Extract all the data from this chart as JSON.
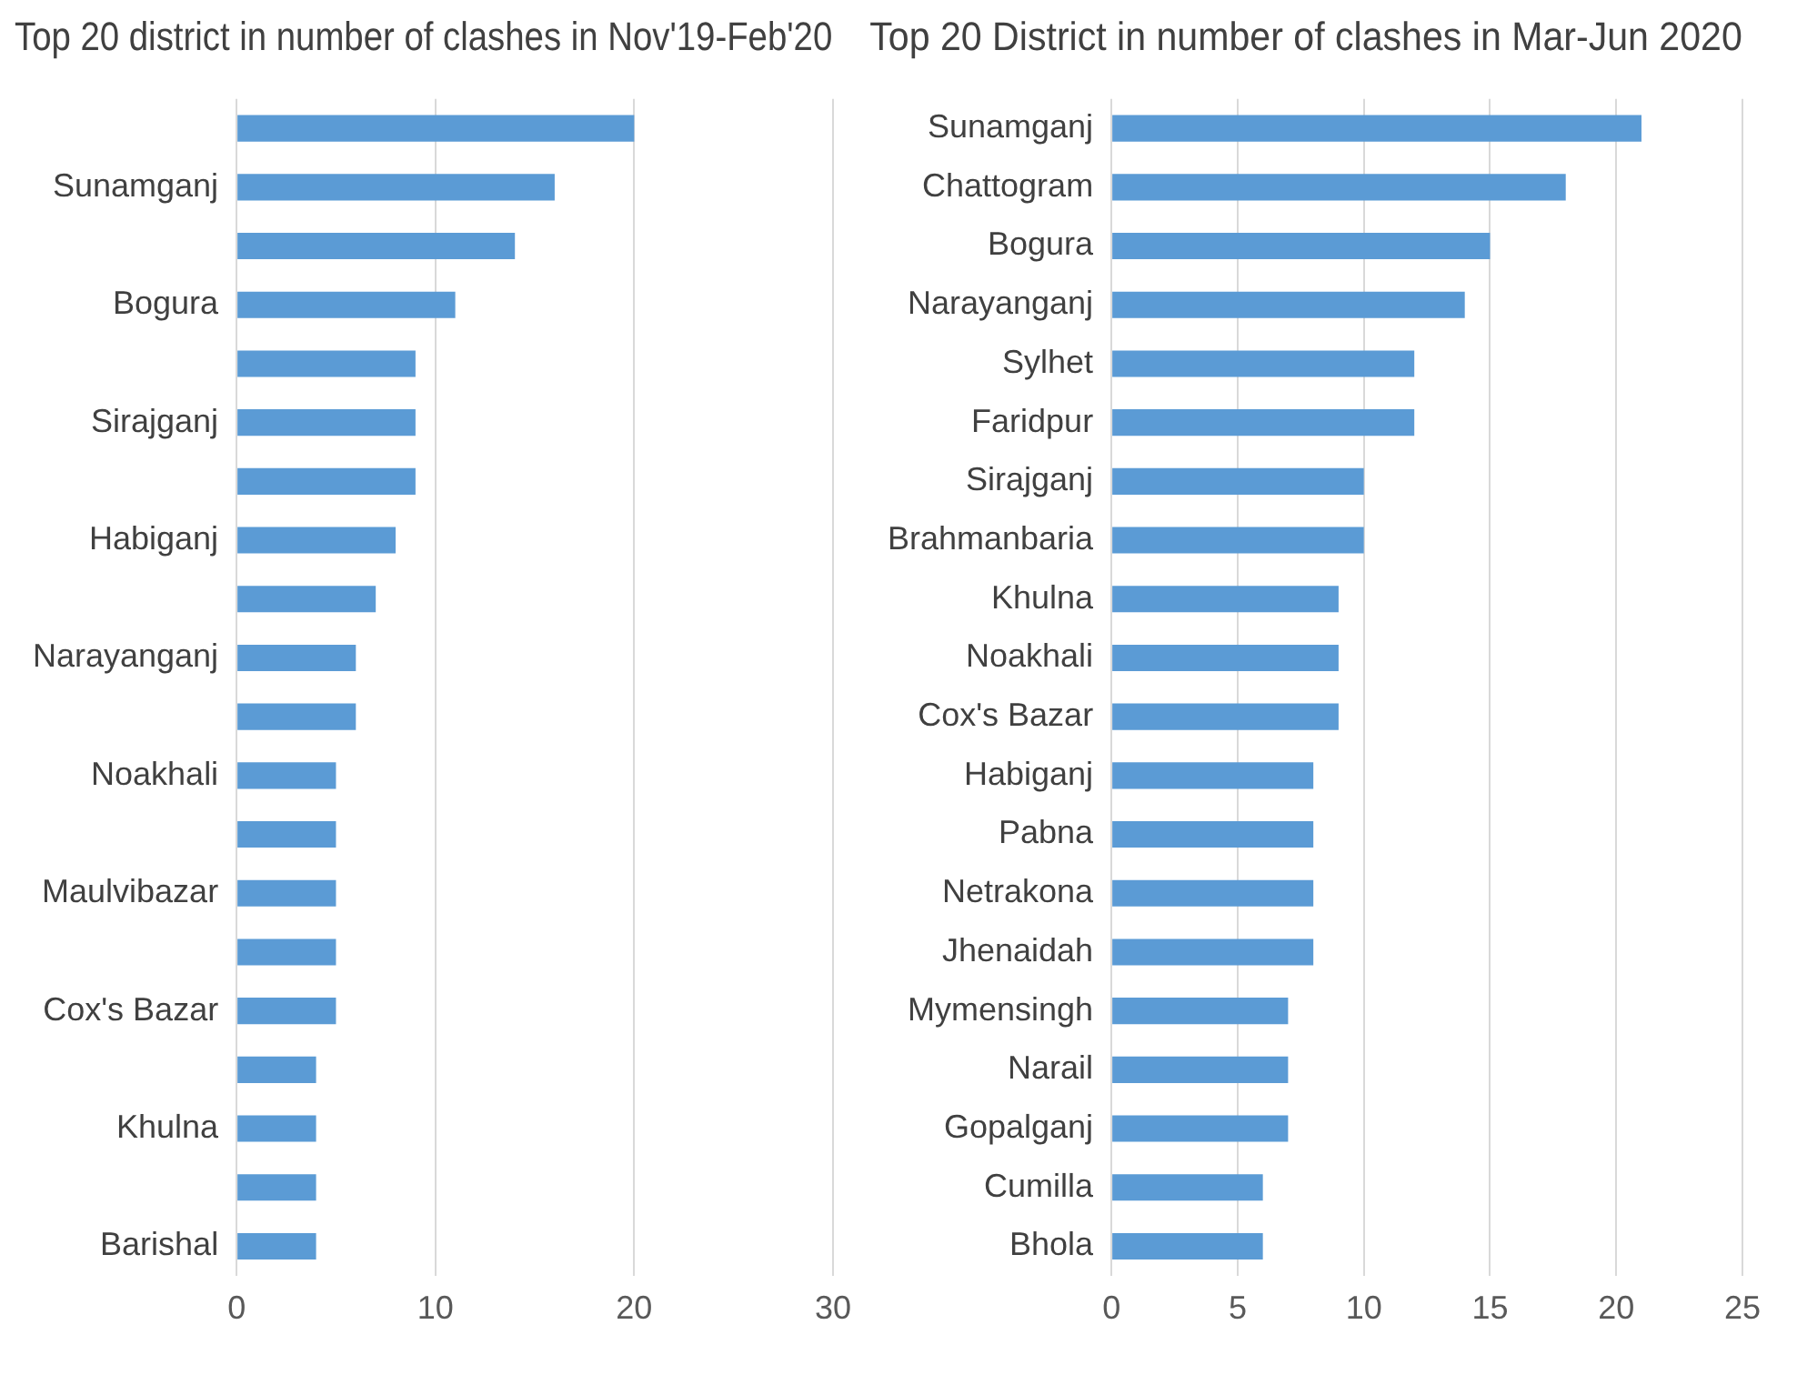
{
  "chart_data": [
    {
      "type": "bar",
      "orientation": "horizontal",
      "title": "Top 20 district in number of clashes in Nov'19-Feb'20",
      "categories": [
        null,
        "Sunamganj",
        null,
        "Bogura",
        null,
        "Sirajganj",
        null,
        "Habiganj",
        null,
        "Narayanganj",
        null,
        "Noakhali",
        null,
        "Maulvibazar",
        null,
        "Cox's Bazar",
        null,
        "Khulna",
        null,
        "Barishal"
      ],
      "values": [
        20,
        16,
        14,
        11,
        9,
        9,
        9,
        8,
        7,
        6,
        6,
        5,
        5,
        5,
        5,
        5,
        4,
        4,
        4,
        4
      ],
      "color": "#5b9bd5",
      "xlim": [
        0,
        30
      ],
      "xticks": [
        0,
        10,
        20,
        30
      ],
      "grid": "x"
    },
    {
      "type": "bar",
      "orientation": "horizontal",
      "title": "Top 20 District in number of clashes in Mar-Jun 2020",
      "categories": [
        "Sunamganj",
        "Chattogram",
        "Bogura",
        "Narayanganj",
        "Sylhet",
        "Faridpur",
        "Sirajganj",
        "Brahmanbaria",
        "Khulna",
        "Noakhali",
        "Cox's Bazar",
        "Habiganj",
        "Pabna",
        "Netrakona",
        "Jhenaidah",
        "Mymensingh",
        "Narail",
        "Gopalganj",
        "Cumilla",
        "Bhola"
      ],
      "values": [
        21,
        18,
        15,
        14,
        12,
        12,
        10,
        10,
        9,
        9,
        9,
        8,
        8,
        8,
        8,
        7,
        7,
        7,
        6,
        6
      ],
      "color": "#5b9bd5",
      "xlim": [
        0,
        25
      ],
      "xticks": [
        0,
        5,
        10,
        15,
        20,
        25
      ],
      "grid": "x"
    }
  ]
}
